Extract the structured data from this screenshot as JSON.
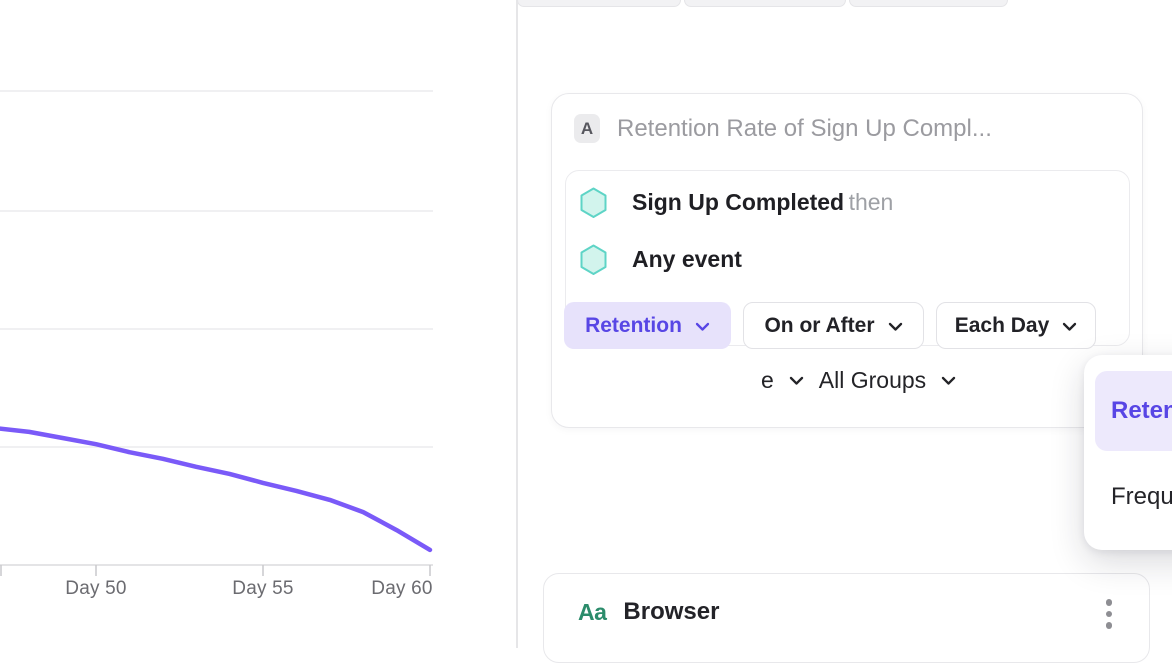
{
  "chart_data": {
    "type": "line",
    "title": "",
    "xlabel": "",
    "ylabel": "",
    "x_unit": "days since first event",
    "x_ticks": [
      {
        "label": "Day 50",
        "day": 50
      },
      {
        "label": "Day 55",
        "day": 55
      },
      {
        "label": "Day 60",
        "day": 60
      }
    ],
    "visible_x_range": [
      47,
      60
    ],
    "y_axis_labels_visible": false,
    "value_unit": "retention percent (estimated; unlabeled gridlines assumed 25 apart, axis = 0)",
    "gridline_count": 4,
    "grid": true,
    "legend": false,
    "series": [
      {
        "name": "Retention",
        "color": "#7A5AF8",
        "points": [
          {
            "day": 47,
            "value": 29.0
          },
          {
            "day": 48,
            "value": 28.2
          },
          {
            "day": 49,
            "value": 26.9
          },
          {
            "day": 50,
            "value": 25.6
          },
          {
            "day": 51,
            "value": 23.9
          },
          {
            "day": 52,
            "value": 22.5
          },
          {
            "day": 53,
            "value": 20.8
          },
          {
            "day": 54,
            "value": 19.3
          },
          {
            "day": 55,
            "value": 17.4
          },
          {
            "day": 56,
            "value": 15.7
          },
          {
            "day": 57,
            "value": 13.8
          },
          {
            "day": 58,
            "value": 11.2
          },
          {
            "day": 59,
            "value": 7.4
          },
          {
            "day": 60,
            "value": 3.2
          }
        ]
      }
    ]
  },
  "right_panel": {
    "query_card": {
      "badge": "A",
      "title_placeholder": "Retention Rate of Sign Up Compl...",
      "events": [
        {
          "icon": "hexagon",
          "name": "Sign Up Completed",
          "suffix": "then"
        },
        {
          "icon": "hexagon",
          "name": "Any event",
          "suffix": ""
        }
      ],
      "controls": {
        "mode": {
          "label": "Retention",
          "state": "open",
          "selected_style": "purple"
        },
        "timing": {
          "label": "On or After"
        },
        "interval": {
          "label": "Each Day"
        }
      },
      "group_row": {
        "left_fragment": "e",
        "groups_label": "All Groups"
      }
    },
    "mode_menu": {
      "items": [
        {
          "label": "Retention",
          "selected": true
        },
        {
          "label": "Frequency",
          "selected": false
        }
      ]
    },
    "add_button_glyph": "+",
    "property_card": {
      "icon_label": "Aa",
      "name": "Browser"
    }
  },
  "colors": {
    "accent_purple": "#5846E5",
    "accent_purple_bg": "#E7E2FB",
    "menu_selected_bg": "#EDE9FC",
    "line_purple": "#7A5AF8",
    "hexagon_stroke": "#5ED4C6",
    "hexagon_fill": "#D2F4ED",
    "property_green": "#2B8C6B",
    "gridline": "#ECECEE",
    "axis": "#DCDCDE",
    "muted_text": "#9B9BA0"
  }
}
